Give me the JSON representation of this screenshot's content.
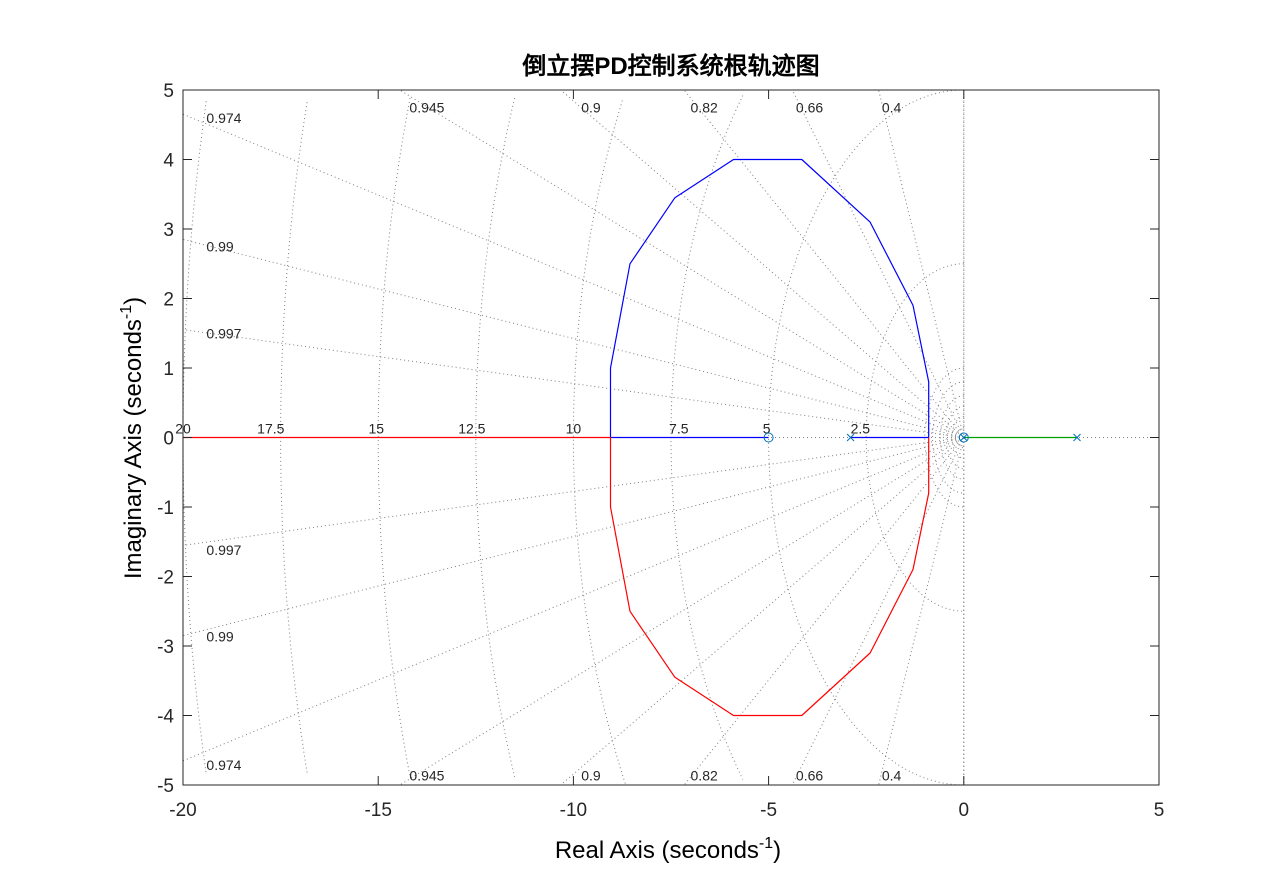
{
  "chart_data": {
    "type": "line",
    "title": "倒立摆PD控制系统根轨迹图",
    "xlabel": "Real Axis (seconds",
    "ylabel": "Imaginary Axis (seconds",
    "unit_exponent": "-1",
    "label_close": ")",
    "xlim": [
      -20,
      5
    ],
    "ylim": [
      -5,
      5
    ],
    "xticks": [
      "-20",
      "-15",
      "-10",
      "-5",
      "0",
      "5"
    ],
    "yticks": [
      "-5",
      "-4",
      "-3",
      "-2",
      "-1",
      "0",
      "1",
      "2",
      "3",
      "4",
      "5"
    ],
    "xtick_values": [
      -20,
      -15,
      -10,
      -5,
      0,
      5
    ],
    "ytick_values": [
      -5,
      -4,
      -3,
      -2,
      -1,
      0,
      1,
      2,
      3,
      4,
      5
    ],
    "grid": true,
    "damping_labels": [
      "0.974",
      "0.945",
      "0.9",
      "0.82",
      "0.66",
      "0.4",
      "0.99",
      "0.997"
    ],
    "damping_values": [
      0.974,
      0.945,
      0.9,
      0.82,
      0.66,
      0.4,
      0.99,
      0.997
    ],
    "frequency_labels": [
      "20",
      "17.5",
      "15",
      "12.5",
      "10",
      "7.5",
      "5",
      "2.5"
    ],
    "frequency_values": [
      20,
      17.5,
      15,
      12.5,
      10,
      7.5,
      5,
      2.5
    ],
    "poles": [
      [
        2.9,
        0
      ],
      [
        -2.9,
        0
      ],
      [
        0,
        0
      ]
    ],
    "zeros": [
      [
        -5,
        0
      ],
      [
        0,
        0
      ]
    ],
    "series": [
      {
        "color": "#0000ff",
        "x": [
          -2.9,
          -1.5,
          -0.9,
          -0.9,
          -1.3,
          -2.4,
          -4.15,
          -5.9,
          -7.4,
          -8.55,
          -9.05,
          -9.05,
          -8.1,
          -6.7,
          -5.0
        ],
        "y": [
          0,
          0,
          0,
          0.8,
          1.9,
          3.1,
          4.0,
          4.0,
          3.45,
          2.5,
          1.0,
          0,
          0,
          0,
          0
        ]
      },
      {
        "color": "#ff0000",
        "x": [
          -0.9,
          -0.9,
          -1.3,
          -2.4,
          -4.15,
          -5.9,
          -7.4,
          -8.55,
          -9.05,
          -9.05,
          -12,
          -16,
          -20
        ],
        "y": [
          0,
          -0.8,
          -1.9,
          -3.1,
          -4.0,
          -4.0,
          -3.45,
          -2.5,
          -1.0,
          0,
          0,
          0,
          0
        ]
      },
      {
        "color": "#00a000",
        "x": [
          0,
          2.9
        ],
        "y": [
          0,
          0
        ]
      }
    ]
  }
}
